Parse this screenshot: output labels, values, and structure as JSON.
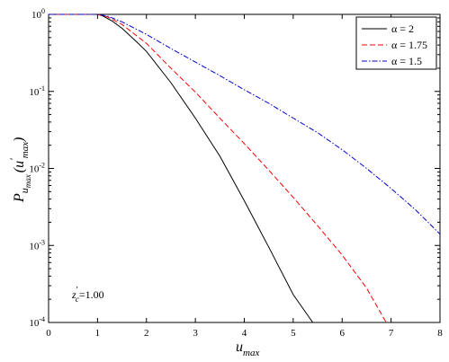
{
  "chart_data": {
    "type": "line",
    "yscale": "log",
    "xlim": [
      0,
      8
    ],
    "ylim": [
      0.0001,
      1
    ],
    "xticks": [
      "0",
      "1",
      "2",
      "3",
      "4",
      "5",
      "6",
      "7",
      "8"
    ],
    "yticks": [
      {
        "base": "10",
        "exp": "0"
      },
      {
        "base": "10",
        "exp": "-1"
      },
      {
        "base": "10",
        "exp": "-2"
      },
      {
        "base": "10",
        "exp": "-3"
      },
      {
        "base": "10",
        "exp": "-4"
      }
    ],
    "xlabel": {
      "main": "u",
      "sub": "max"
    },
    "ylabel": {
      "main": "P",
      "sub": "u",
      "subsub": "max",
      "arg_open": "(u",
      "prime": "′",
      "arg_sub": "max",
      "arg_close": ")"
    },
    "annotation": {
      "main": "z",
      "prime": "′",
      "sub": "c",
      "rest": "=1.00"
    },
    "legend_position": "top-right",
    "series": [
      {
        "name": "α = 2",
        "color": "#000000",
        "dash": "solid",
        "x": [
          0,
          0.5,
          0.9,
          1.0,
          1.1,
          1.3,
          1.5,
          1.8,
          2.0,
          2.5,
          3.0,
          3.5,
          4.0,
          4.5,
          5.0,
          5.4
        ],
        "y": [
          1,
          1,
          1,
          1,
          0.96,
          0.82,
          0.66,
          0.44,
          0.33,
          0.13,
          0.045,
          0.0145,
          0.0038,
          0.00095,
          0.00023,
          0.0001
        ]
      },
      {
        "name": "α = 1.75",
        "color": "#ff0000",
        "dash": "dashed",
        "x": [
          0,
          0.5,
          0.9,
          1.0,
          1.2,
          1.5,
          2.0,
          2.5,
          3.0,
          3.5,
          4.0,
          4.5,
          5.0,
          5.5,
          6.0,
          6.5,
          6.9
        ],
        "y": [
          1,
          1,
          1,
          1,
          0.93,
          0.74,
          0.42,
          0.2,
          0.098,
          0.045,
          0.021,
          0.0095,
          0.0042,
          0.0018,
          0.00075,
          0.00028,
          0.0001
        ]
      },
      {
        "name": "α = 1.5",
        "color": "#0000cc",
        "dash": "dashdot",
        "x": [
          0,
          0.5,
          0.9,
          1.0,
          1.2,
          1.5,
          2.0,
          2.5,
          3.0,
          3.5,
          4.0,
          4.5,
          5.0,
          5.5,
          6.0,
          6.5,
          7.0,
          7.5,
          8.0
        ],
        "y": [
          1,
          1,
          1,
          1,
          0.95,
          0.8,
          0.55,
          0.36,
          0.24,
          0.16,
          0.105,
          0.07,
          0.045,
          0.029,
          0.0175,
          0.01,
          0.0055,
          0.0029,
          0.0014
        ]
      }
    ]
  }
}
